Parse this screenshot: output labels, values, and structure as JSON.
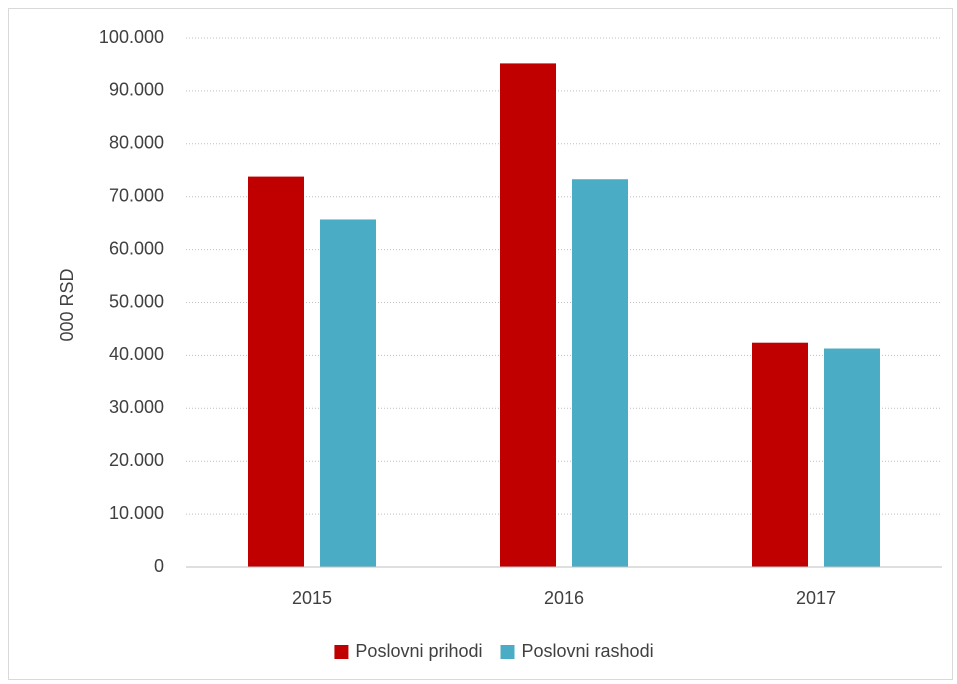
{
  "chart_data": {
    "type": "bar",
    "title": "",
    "xlabel": "",
    "ylabel": "000 RSD",
    "categories": [
      "2015",
      "2016",
      "2017"
    ],
    "series": [
      {
        "name": "Poslovni prihodi",
        "color": "#c00000",
        "values": [
          73800,
          95200,
          42400
        ]
      },
      {
        "name": "Poslovni rashodi",
        "color": "#4bacc6",
        "values": [
          65700,
          73300,
          41300
        ]
      }
    ],
    "ylim": [
      0,
      100000
    ],
    "yticks": [
      0,
      10000,
      20000,
      30000,
      40000,
      50000,
      60000,
      70000,
      80000,
      90000,
      100000
    ],
    "ytick_labels": [
      "0",
      "10.000",
      "20.000",
      "30.000",
      "40.000",
      "50.000",
      "60.000",
      "70.000",
      "80.000",
      "90.000",
      "100.000"
    ],
    "grid": true,
    "legend_position": "bottom"
  }
}
